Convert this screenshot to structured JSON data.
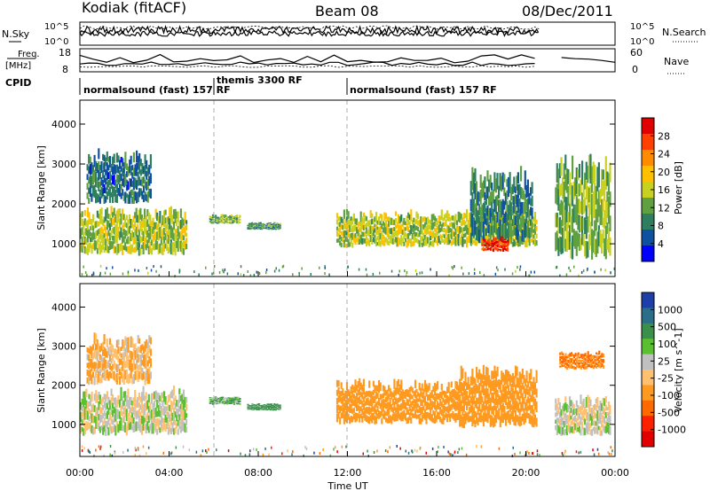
{
  "header": {
    "station": "Kodiak (fitACF)",
    "beam": "Beam 08",
    "date": "08/Dec/2011"
  },
  "side_labels": {
    "nsky": "N.Sky",
    "freq": "Freq.",
    "freq_unit": "[MHz]",
    "cpid": "CPID",
    "nsearch": "N.Search",
    "nave": "Nave"
  },
  "cpid_segments": [
    {
      "label": "normalsound (fast) 157 RF",
      "start": 0,
      "end": 6
    },
    {
      "label": "themis 3300 RF",
      "start": 6,
      "end": 12
    },
    {
      "label": "normalsound (fast) 157 RF",
      "start": 12,
      "end": 24
    }
  ],
  "axes": {
    "ylabel": "Slant Range [km]",
    "xlabel": "Time UT",
    "xticks": [
      "00:00",
      "04:00",
      "08:00",
      "12:00",
      "16:00",
      "20:00",
      "00:00"
    ],
    "yticks": [
      "1000",
      "2000",
      "3000",
      "4000"
    ],
    "noise_ticks_left": [
      "10^5",
      "10^0"
    ],
    "noise_ticks_right": [
      "10^5",
      "10^0"
    ],
    "freq_ticks_left": [
      "18",
      "8"
    ],
    "freq_ticks_right": [
      "60",
      "0"
    ]
  },
  "power_colorbar": {
    "label": "Power [dB]",
    "ticks": [
      "28",
      "24",
      "20",
      "16",
      "12",
      "8",
      "4"
    ],
    "colors": [
      "#e00000",
      "#ff4000",
      "#ff8c00",
      "#ffc000",
      "#c8d020",
      "#60a040",
      "#2e7f60",
      "#1050a0",
      "#0000ff"
    ]
  },
  "velocity_colorbar": {
    "label": "Velocity [m s^-1]",
    "ticks": [
      "1000",
      "500",
      "100",
      "25",
      "-25",
      "-100",
      "-500",
      "-1000"
    ],
    "colors": [
      "#1e3fa8",
      "#2a6e8a",
      "#3a8f4a",
      "#5ac030",
      "#c0c0c0",
      "#ffc070",
      "#ff9a20",
      "#ff6a00",
      "#ff2000",
      "#e00000"
    ]
  },
  "chart_data": [
    {
      "type": "heatmap",
      "title": "Power",
      "xlabel": "Time UT",
      "ylabel": "Slant Range [km]",
      "xlim": [
        0,
        24
      ],
      "ylim": [
        180,
        4600
      ],
      "zlabel": "Power [dB]",
      "zlim": [
        0,
        30
      ],
      "regions": [
        {
          "t0": 0.0,
          "t1": 4.8,
          "r0": 700,
          "r1": 2000,
          "power": 14
        },
        {
          "t0": 0.3,
          "t1": 3.2,
          "r0": 2000,
          "r1": 3400,
          "power": 6
        },
        {
          "t0": 5.8,
          "t1": 7.2,
          "r0": 1500,
          "r1": 1750,
          "power": 12
        },
        {
          "t0": 7.5,
          "t1": 9.0,
          "r0": 1350,
          "r1": 1550,
          "power": 9
        },
        {
          "t0": 11.5,
          "t1": 20.5,
          "r0": 900,
          "r1": 1900,
          "power": 14
        },
        {
          "t0": 17.5,
          "t1": 20.3,
          "r0": 1000,
          "r1": 3000,
          "power": 8
        },
        {
          "t0": 18.0,
          "t1": 19.2,
          "r0": 800,
          "r1": 1200,
          "power": 28
        },
        {
          "t0": 21.3,
          "t1": 23.8,
          "r0": 600,
          "r1": 3400,
          "power": 12
        }
      ],
      "data_gap": [
        20.6,
        21.3
      ]
    },
    {
      "type": "heatmap",
      "title": "Velocity",
      "xlabel": "Time UT",
      "ylabel": "Slant Range [km]",
      "xlim": [
        0,
        24
      ],
      "ylim": [
        180,
        4600
      ],
      "zlabel": "Velocity [m s^-1]",
      "zlim": [
        -1000,
        1000
      ],
      "regions": [
        {
          "t0": 0.0,
          "t1": 4.8,
          "r0": 700,
          "r1": 2000,
          "velocity": 0
        },
        {
          "t0": 0.3,
          "t1": 3.2,
          "r0": 2000,
          "r1": 3400,
          "velocity": -60
        },
        {
          "t0": 5.8,
          "t1": 7.2,
          "r0": 1500,
          "r1": 1750,
          "velocity": 60
        },
        {
          "t0": 7.5,
          "t1": 9.0,
          "r0": 1350,
          "r1": 1550,
          "velocity": 150
        },
        {
          "t0": 11.5,
          "t1": 17.0,
          "r0": 1000,
          "r1": 2200,
          "velocity": -200
        },
        {
          "t0": 17.0,
          "t1": 20.5,
          "r0": 900,
          "r1": 2600,
          "velocity": -150
        },
        {
          "t0": 21.3,
          "t1": 23.8,
          "r0": 700,
          "r1": 1800,
          "velocity": 0
        },
        {
          "t0": 21.5,
          "t1": 23.5,
          "r0": 2400,
          "r1": 2900,
          "velocity": -300
        }
      ],
      "data_gap": [
        20.6,
        21.3
      ]
    }
  ]
}
